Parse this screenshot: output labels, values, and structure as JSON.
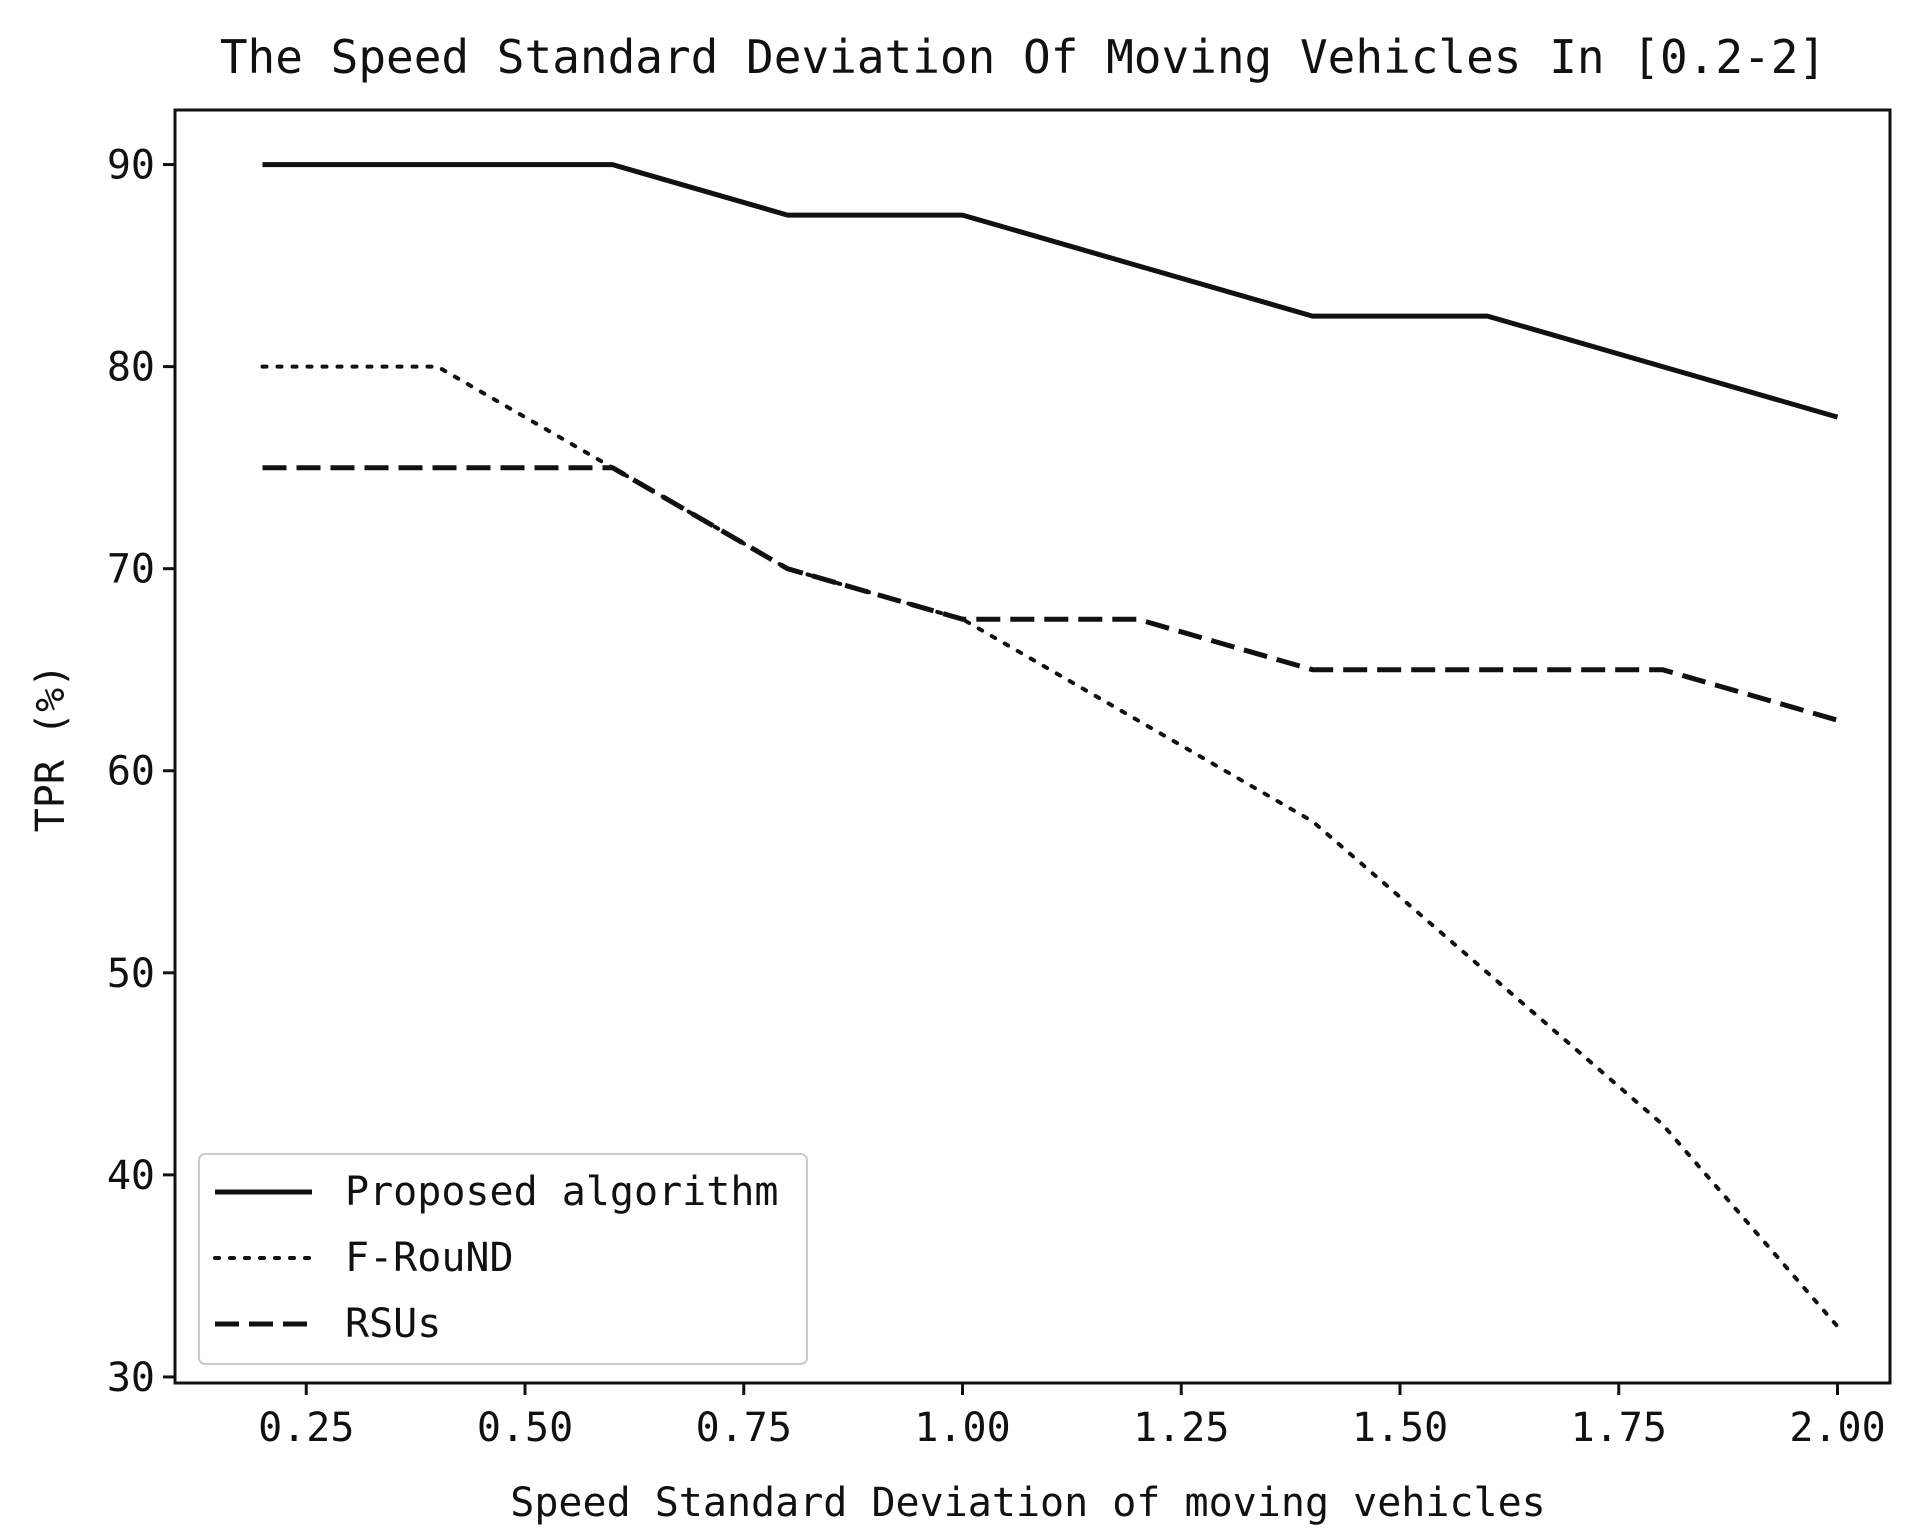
{
  "chart_data": {
    "type": "line",
    "title": "The Speed Standard Deviation Of Moving Vehicles In [0.2-2]",
    "xlabel": "Speed Standard Deviation of moving vehicles",
    "ylabel": "TPR (%)",
    "xlim": [
      0.1,
      2.06
    ],
    "ylim": [
      29.7,
      92.7
    ],
    "xticks": [
      "0.25",
      "0.50",
      "0.75",
      "1.00",
      "1.25",
      "1.50",
      "1.75",
      "2.00"
    ],
    "yticks": [
      "30",
      "40",
      "50",
      "60",
      "70",
      "80",
      "90"
    ],
    "legend_position": "lower-left",
    "grid": false,
    "x": [
      0.2,
      0.4,
      0.6,
      0.8,
      1.0,
      1.2,
      1.4,
      1.6,
      1.8,
      2.0
    ],
    "series": [
      {
        "name": "Proposed algorithm",
        "style": "solid",
        "color": "#111111",
        "values": [
          90,
          90,
          90,
          87.5,
          87.5,
          85,
          82.5,
          82.5,
          80,
          77.5
        ]
      },
      {
        "name": "F-RouND",
        "style": "dotted",
        "color": "#111111",
        "values": [
          80,
          80,
          75,
          70,
          67.5,
          62.5,
          57.5,
          50,
          42.5,
          32.5
        ]
      },
      {
        "name": "RSUs",
        "style": "dashed",
        "color": "#111111",
        "values": [
          75,
          75,
          75,
          70,
          67.5,
          67.5,
          65,
          65,
          65,
          62.5
        ]
      }
    ]
  }
}
